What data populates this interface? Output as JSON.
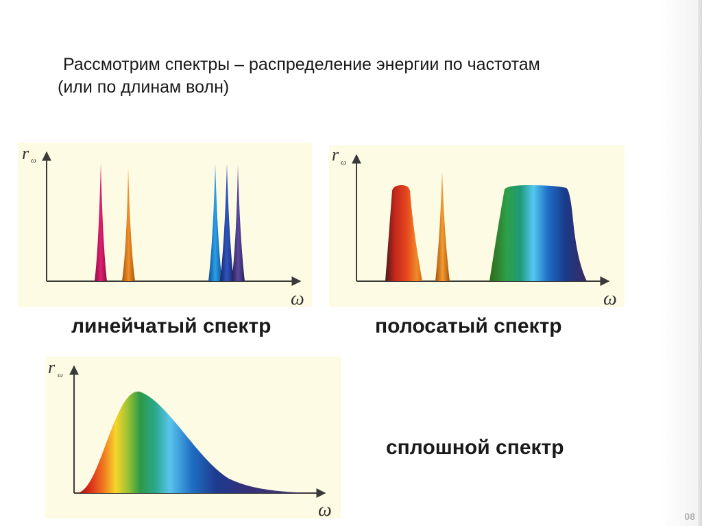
{
  "heading": {
    "line1": "Рассмотрим спектры – распределение энергии по частотам",
    "line2": "(или по длинам волн)"
  },
  "axes": {
    "y_label_main": "r",
    "y_label_sub": "ω",
    "x_label": "ω"
  },
  "panels": [
    {
      "id": "line-spectrum",
      "caption": "линейчатый спектр"
    },
    {
      "id": "band-spectrum",
      "caption": "полосатый спектр"
    },
    {
      "id": "continuous-spectrum",
      "caption": "сплошной спектр"
    }
  ],
  "colors": {
    "panel_background": "#fdfbe3",
    "axis": "#3a3a3a",
    "magenta_line": "#d6186a",
    "orange_line": "#e8801e",
    "blue_line": "#1e7fd0",
    "navy_line": "#26389a",
    "violet_line": "#3d2f7a"
  },
  "page_number": "08"
}
